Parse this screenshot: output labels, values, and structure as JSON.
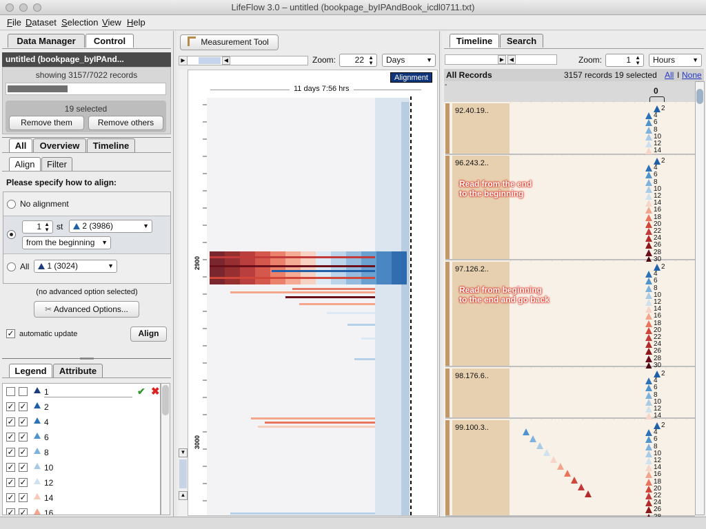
{
  "window": {
    "title": "LifeFlow 3.0 – untitled (bookpage_byIPAndBook_icdl0711.txt)"
  },
  "menu": [
    "File",
    "Dataset",
    "Selection",
    "View",
    "Help"
  ],
  "left": {
    "tabs": [
      "Data Manager",
      "Control"
    ],
    "dataset_name": "untitled (bookpage_byIPAnd...",
    "showing": "showing 3157/7022 records",
    "progress": 0.38,
    "selected": "19 selected",
    "remove_them": "Remove them",
    "remove_others": "Remove others",
    "subtabs": [
      "All",
      "Overview",
      "Timeline"
    ],
    "align_tabs": [
      "Align",
      "Filter"
    ],
    "instruction": "Please specify how to align:",
    "no_alignment": "No alignment",
    "nth_value": "1",
    "nth_suffix": "st",
    "event_combo": "2 (3986)",
    "direction_combo": "from the beginning",
    "all_label": "All",
    "all_combo": "1 (3024)",
    "advanced_note": "(no advanced option selected)",
    "advanced_button": "Advanced Options...",
    "auto_update": "automatic update",
    "align_button": "Align",
    "legend_tabs": [
      "Legend",
      "Attribute"
    ],
    "legend": [
      {
        "label": "1",
        "color": "#1a3d7a"
      },
      {
        "label": "2",
        "color": "#1f5fa8"
      },
      {
        "label": "4",
        "color": "#2b72b8"
      },
      {
        "label": "6",
        "color": "#4f94cc"
      },
      {
        "label": "8",
        "color": "#7db2dc"
      },
      {
        "label": "10",
        "color": "#a9cbe6"
      },
      {
        "label": "12",
        "color": "#cfe0ef"
      },
      {
        "label": "14",
        "color": "#f6c9b8"
      },
      {
        "label": "16",
        "color": "#f2a48c"
      }
    ]
  },
  "center": {
    "measurement_tool": "Measurement Tool",
    "zoom_label": "Zoom:",
    "zoom_value": "22",
    "unit": "Days",
    "alignment_badge": "Alignment",
    "duration": "11 days 7:56 hrs",
    "y_ticks": [
      "2900",
      "3000"
    ]
  },
  "right": {
    "tabs": [
      "Timeline",
      "Search"
    ],
    "zoom_label": "Zoom:",
    "zoom_value": "1",
    "unit": "Hours",
    "all_records": "All Records",
    "summary": "3157 records 19 selected",
    "all_link": "All",
    "sep": "I",
    "none_link": "None",
    "axis_zero": "0",
    "records": [
      {
        "id": "92.40.19..",
        "labels": [
          "2",
          "4",
          "6",
          "8",
          "10",
          "12",
          "14"
        ]
      },
      {
        "id": "96.243.2..",
        "labels": [
          "2",
          "4",
          "6",
          "8",
          "10",
          "12",
          "14",
          "16",
          "18",
          "20",
          "22",
          "24",
          "26",
          "28",
          "30"
        ],
        "annotation": "Read from the end\nto the beginning"
      },
      {
        "id": "97.126.2..",
        "labels": [
          "2",
          "4",
          "6",
          "8",
          "10",
          "12",
          "14",
          "16",
          "18",
          "20",
          "22",
          "24",
          "26",
          "28",
          "30"
        ],
        "annotation": "Read from beginning\nto the end and go back"
      },
      {
        "id": "98.176.6..",
        "labels": [
          "2",
          "4",
          "6",
          "8",
          "10",
          "12",
          "14"
        ]
      },
      {
        "id": "99.100.3..",
        "labels": [
          "2",
          "4",
          "6",
          "8",
          "10",
          "12",
          "14",
          "16",
          "18",
          "20",
          "22",
          "24",
          "26",
          "28"
        ]
      }
    ]
  }
}
